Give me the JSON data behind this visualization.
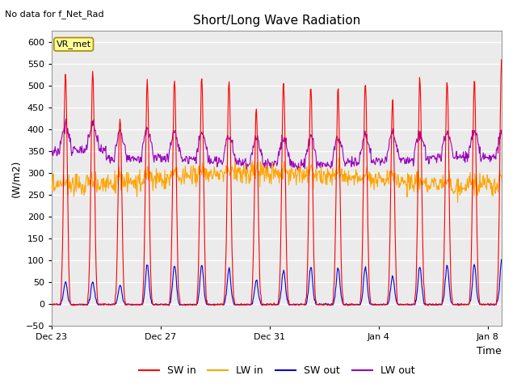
{
  "title": "Short/Long Wave Radiation",
  "subtitle": "No data for f_Net_Rad",
  "ylabel": "(W/m2)",
  "xlabel": "Time",
  "ylim": [
    -50,
    625
  ],
  "yticks": [
    -50,
    0,
    50,
    100,
    150,
    200,
    250,
    300,
    350,
    400,
    450,
    500,
    550,
    600
  ],
  "xtick_labels": [
    "Dec 23",
    "Dec 27",
    "Dec 31",
    "Jan 4",
    "Jan 8"
  ],
  "xtick_positions": [
    0,
    4,
    8,
    12,
    16
  ],
  "legend_labels": [
    "SW in",
    "LW in",
    "SW out",
    "LW out"
  ],
  "colors": {
    "SW_in": "#FF0000",
    "LW_in": "#FFA500",
    "SW_out": "#0000DD",
    "LW_out": "#9900BB"
  },
  "vr_met_box_facecolor": "#FFFF99",
  "vr_met_box_edgecolor": "#AA8800",
  "plot_bg_color": "#EBEBEB",
  "n_days": 17,
  "dt_hours": 0.5,
  "sw_in_peaks": [
    530,
    530,
    435,
    505,
    515,
    520,
    510,
    445,
    510,
    500,
    495,
    510,
    470,
    520,
    515,
    510,
    565
  ],
  "sw_out_peaks": [
    50,
    50,
    45,
    90,
    90,
    90,
    80,
    55,
    80,
    85,
    85,
    85,
    65,
    85,
    90,
    90,
    100
  ]
}
